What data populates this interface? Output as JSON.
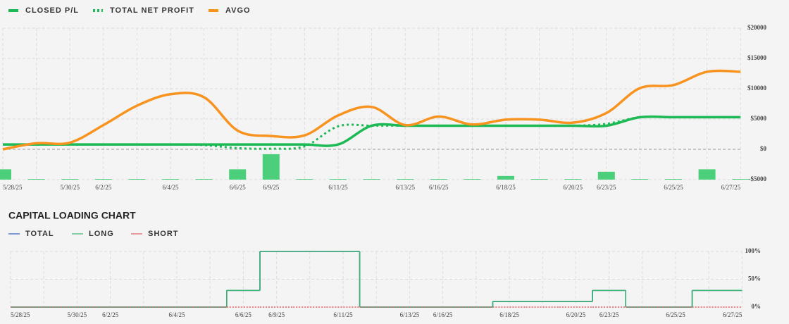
{
  "chart_data": [
    {
      "type": "line",
      "categories": [
        "5/28/25",
        null,
        "5/30/25",
        "6/2/25",
        null,
        "6/4/25",
        null,
        "6/6/25",
        "6/9/25",
        null,
        "6/11/25",
        null,
        "6/13/25",
        "6/16/25",
        null,
        "6/18/25",
        null,
        "6/20/25",
        "6/23/25",
        null,
        "6/25/25",
        null,
        "6/27/25"
      ],
      "series": [
        {
          "name": "CLOSED P/L",
          "color": "#1db954",
          "style": "solid",
          "values": [
            800,
            800,
            800,
            800,
            800,
            800,
            800,
            800,
            800,
            800,
            800,
            3900,
            3900,
            3900,
            3900,
            3900,
            3900,
            3900,
            3900,
            5300,
            5300,
            5300,
            5300
          ]
        },
        {
          "name": "TOTAL NET PROFIT",
          "color": "#1db954",
          "style": "dotted",
          "values": [
            800,
            800,
            800,
            800,
            800,
            800,
            700,
            200,
            100,
            500,
            3800,
            3900,
            3900,
            3900,
            3900,
            3900,
            3900,
            3900,
            4200,
            5300,
            5300,
            5300,
            5300
          ]
        },
        {
          "name": "AVGO",
          "color": "#f7931e",
          "style": "solid",
          "values": [
            0,
            1000,
            1100,
            4000,
            7200,
            9100,
            8600,
            3100,
            2200,
            2300,
            5600,
            7000,
            4000,
            5400,
            4100,
            4900,
            4900,
            4400,
            6000,
            10100,
            10600,
            12800,
            12800
          ]
        },
        {
          "type": "bar",
          "color": "#4ccf7b",
          "values": [
            -3300,
            -5000,
            -5000,
            -5000,
            -5000,
            -5000,
            -5000,
            -3300,
            -800,
            -5000,
            -5000,
            -5000,
            -5000,
            -5000,
            -5000,
            -4400,
            -5000,
            -5000,
            -3700,
            -5000,
            -5000,
            -3300,
            -5000
          ]
        }
      ],
      "ylim": [
        -5000,
        20000
      ],
      "yticks": [
        {
          "value": -5000,
          "label": "-$5000"
        },
        {
          "value": 0,
          "label": "$0"
        },
        {
          "value": 5000,
          "label": "$5000"
        },
        {
          "value": 10000,
          "label": "$10000"
        },
        {
          "value": 15000,
          "label": "$15000"
        },
        {
          "value": 20000,
          "label": "$20000"
        }
      ],
      "grid": true
    },
    {
      "type": "step",
      "title": "CAPITAL LOADING CHART",
      "categories": [
        "5/28/25",
        null,
        "5/30/25",
        "6/2/25",
        null,
        "6/4/25",
        null,
        "6/6/25",
        "6/9/25",
        null,
        "6/11/25",
        null,
        "6/13/25",
        "6/16/25",
        null,
        "6/18/25",
        null,
        "6/20/25",
        "6/23/25",
        null,
        "6/25/25",
        null,
        "6/27/25"
      ],
      "series": [
        {
          "name": "TOTAL",
          "color": "#2f5fbf",
          "values": [
            0,
            0,
            0,
            0,
            0,
            0,
            0,
            30,
            100,
            100,
            100,
            0,
            0,
            0,
            0,
            10,
            10,
            10,
            30,
            0,
            0,
            30,
            30
          ]
        },
        {
          "name": "LONG",
          "color": "#3cb371",
          "values": [
            0,
            0,
            0,
            0,
            0,
            0,
            0,
            30,
            100,
            100,
            100,
            0,
            0,
            0,
            0,
            10,
            10,
            10,
            30,
            0,
            0,
            30,
            30
          ]
        },
        {
          "name": "SHORT",
          "color": "#e06060",
          "values": [
            0,
            0,
            0,
            0,
            0,
            0,
            0,
            0,
            0,
            0,
            0,
            0,
            0,
            0,
            0,
            0,
            0,
            0,
            0,
            0,
            0,
            0,
            0
          ]
        }
      ],
      "ylim": [
        0,
        100
      ],
      "yticks": [
        {
          "value": 0,
          "label": "0%"
        },
        {
          "value": 50,
          "label": "50%"
        },
        {
          "value": 100,
          "label": "100%"
        }
      ],
      "grid": true
    }
  ]
}
